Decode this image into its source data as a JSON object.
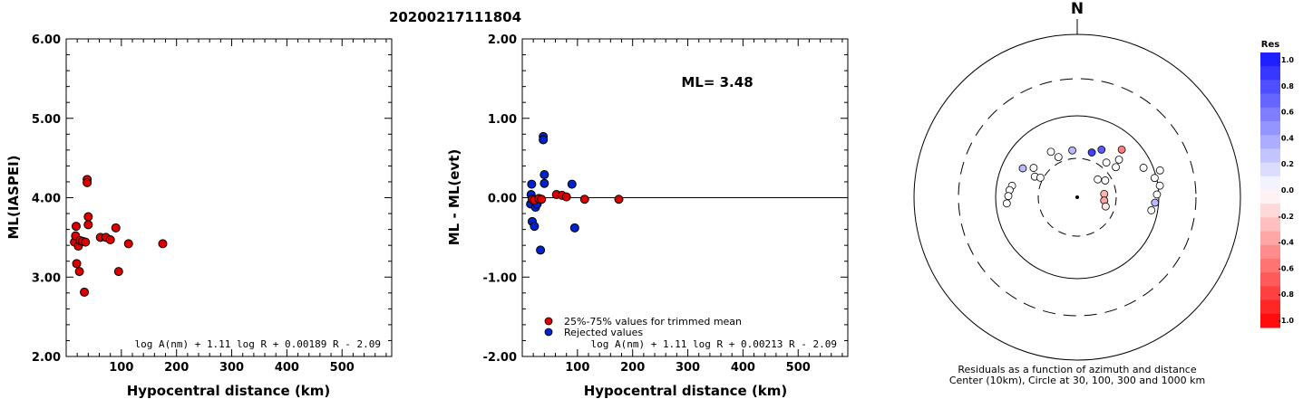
{
  "title": "20200217111804",
  "chart_data": [
    {
      "type": "scatter",
      "ylabel": "ML(IASPEI)",
      "xlabel": "Hypocentral distance (km)",
      "xlim": [
        0,
        590
      ],
      "ylim": [
        2.0,
        6.0
      ],
      "xticks": [
        "100",
        "200",
        "300",
        "400",
        "500"
      ],
      "yticks": [
        "2.00",
        "3.00",
        "4.00",
        "5.00",
        "6.00"
      ],
      "formula": "log A(nm) + 1.11 log R + 0.00189 R - 2.09",
      "points": [
        {
          "x": 15,
          "y": 3.44
        },
        {
          "x": 17,
          "y": 3.52
        },
        {
          "x": 18,
          "y": 3.64
        },
        {
          "x": 19,
          "y": 3.17
        },
        {
          "x": 22,
          "y": 3.39
        },
        {
          "x": 24,
          "y": 3.07
        },
        {
          "x": 25,
          "y": 3.46
        },
        {
          "x": 30,
          "y": 3.45
        },
        {
          "x": 33,
          "y": 2.81
        },
        {
          "x": 35,
          "y": 3.44
        },
        {
          "x": 38,
          "y": 4.23
        },
        {
          "x": 38,
          "y": 4.19
        },
        {
          "x": 40,
          "y": 3.76
        },
        {
          "x": 40,
          "y": 3.66
        },
        {
          "x": 62,
          "y": 3.5
        },
        {
          "x": 72,
          "y": 3.5
        },
        {
          "x": 80,
          "y": 3.47
        },
        {
          "x": 90,
          "y": 3.62
        },
        {
          "x": 95,
          "y": 3.07
        },
        {
          "x": 113,
          "y": 3.42
        },
        {
          "x": 175,
          "y": 3.42
        }
      ]
    },
    {
      "type": "scatter",
      "ylabel": "ML - ML(evt)",
      "xlabel": "Hypocentral distance (km)",
      "xlim": [
        0,
        590
      ],
      "ylim": [
        -2.0,
        2.0
      ],
      "xticks": [
        "100",
        "200",
        "300",
        "400",
        "500"
      ],
      "yticks": [
        "-2.00",
        "-1.00",
        "0.00",
        "1.00",
        "2.00"
      ],
      "annotation": "ML= 3.48",
      "formula": "log A(nm) + 1.11 log R + 0.00213 R - 2.09",
      "legend": [
        {
          "label": "25%-75% values for trimmed mean",
          "color": "#dd0000"
        },
        {
          "label": "Rejected values",
          "color": "#0022cc"
        }
      ],
      "series": [
        {
          "name": "25%-75% values for trimmed mean",
          "color": "#dd0000",
          "points": [
            {
              "x": 18,
              "y": -0.02
            },
            {
              "x": 22,
              "y": -0.03
            },
            {
              "x": 30,
              "y": -0.01
            },
            {
              "x": 35,
              "y": -0.02
            },
            {
              "x": 62,
              "y": 0.04
            },
            {
              "x": 72,
              "y": 0.03
            },
            {
              "x": 80,
              "y": 0.01
            },
            {
              "x": 113,
              "y": -0.02
            },
            {
              "x": 175,
              "y": -0.02
            }
          ]
        },
        {
          "name": "Rejected values",
          "color": "#0022cc",
          "points": [
            {
              "x": 15,
              "y": -0.08
            },
            {
              "x": 16,
              "y": 0.04
            },
            {
              "x": 17,
              "y": 0.17
            },
            {
              "x": 18,
              "y": -0.3
            },
            {
              "x": 22,
              "y": -0.36
            },
            {
              "x": 24,
              "y": -0.12
            },
            {
              "x": 27,
              "y": -0.08
            },
            {
              "x": 33,
              "y": -0.66
            },
            {
              "x": 38,
              "y": 0.77
            },
            {
              "x": 38,
              "y": 0.73
            },
            {
              "x": 40,
              "y": 0.29
            },
            {
              "x": 40,
              "y": 0.18
            },
            {
              "x": 90,
              "y": 0.17
            },
            {
              "x": 95,
              "y": -0.38
            }
          ]
        }
      ]
    },
    {
      "type": "scatter",
      "subtype": "polar residual map",
      "north_label": "N",
      "caption_line1": "Residuals as a function of azimuth and distance",
      "caption_line2": "Center (10km), Circle at 30, 100, 300 and 1000 km",
      "points": [
        {
          "az": 296,
          "dist": 52,
          "res": 0.0
        },
        {
          "az": 298,
          "dist": 68,
          "res": 0.3
        },
        {
          "az": 280,
          "dist": 73,
          "res": 0.0
        },
        {
          "az": 276,
          "dist": 75,
          "res": 0.0
        },
        {
          "az": 271,
          "dist": 76,
          "res": 0.0
        },
        {
          "az": 265,
          "dist": 78,
          "res": 0.0
        },
        {
          "az": 304,
          "dist": 58,
          "res": 0.0
        },
        {
          "az": 298,
          "dist": 46,
          "res": 0.0
        },
        {
          "az": 330,
          "dist": 58,
          "res": 0.0
        },
        {
          "az": 335,
          "dist": 49,
          "res": 0.0
        },
        {
          "az": 354,
          "dist": 52,
          "res": 0.3
        },
        {
          "az": 18,
          "dist": 52,
          "res": 0.8
        },
        {
          "az": 27,
          "dist": 59,
          "res": 0.7
        },
        {
          "az": 40,
          "dist": 50,
          "res": 0.0
        },
        {
          "az": 52,
          "dist": 54,
          "res": 0.0
        },
        {
          "az": 48,
          "dist": 62,
          "res": 0.0
        },
        {
          "az": 43,
          "dist": 72,
          "res": -0.5
        },
        {
          "az": 66,
          "dist": 80,
          "res": 0.0
        },
        {
          "az": 72,
          "dist": 96,
          "res": 0.0
        },
        {
          "az": 76,
          "dist": 88,
          "res": 0.0
        },
        {
          "az": 82,
          "dist": 92,
          "res": 0.0
        },
        {
          "az": 88,
          "dist": 88,
          "res": 0.0
        },
        {
          "az": 94,
          "dist": 86,
          "res": 0.3
        },
        {
          "az": 100,
          "dist": 83,
          "res": 0.0
        },
        {
          "az": 83,
          "dist": 30,
          "res": -0.3
        },
        {
          "az": 97,
          "dist": 30,
          "res": -0.35
        },
        {
          "az": 108,
          "dist": 33,
          "res": -0.1
        },
        {
          "az": 59,
          "dist": 36,
          "res": 0.0
        },
        {
          "az": 49,
          "dist": 30,
          "res": 0.0
        }
      ],
      "colorbar": {
        "title": "Res",
        "ticks": [
          "1.0",
          "0.8",
          "0.6",
          "0.4",
          "0.2",
          "0.0",
          "-0.2",
          "-0.4",
          "-0.6",
          "-0.8",
          "-1.0"
        ]
      }
    }
  ]
}
